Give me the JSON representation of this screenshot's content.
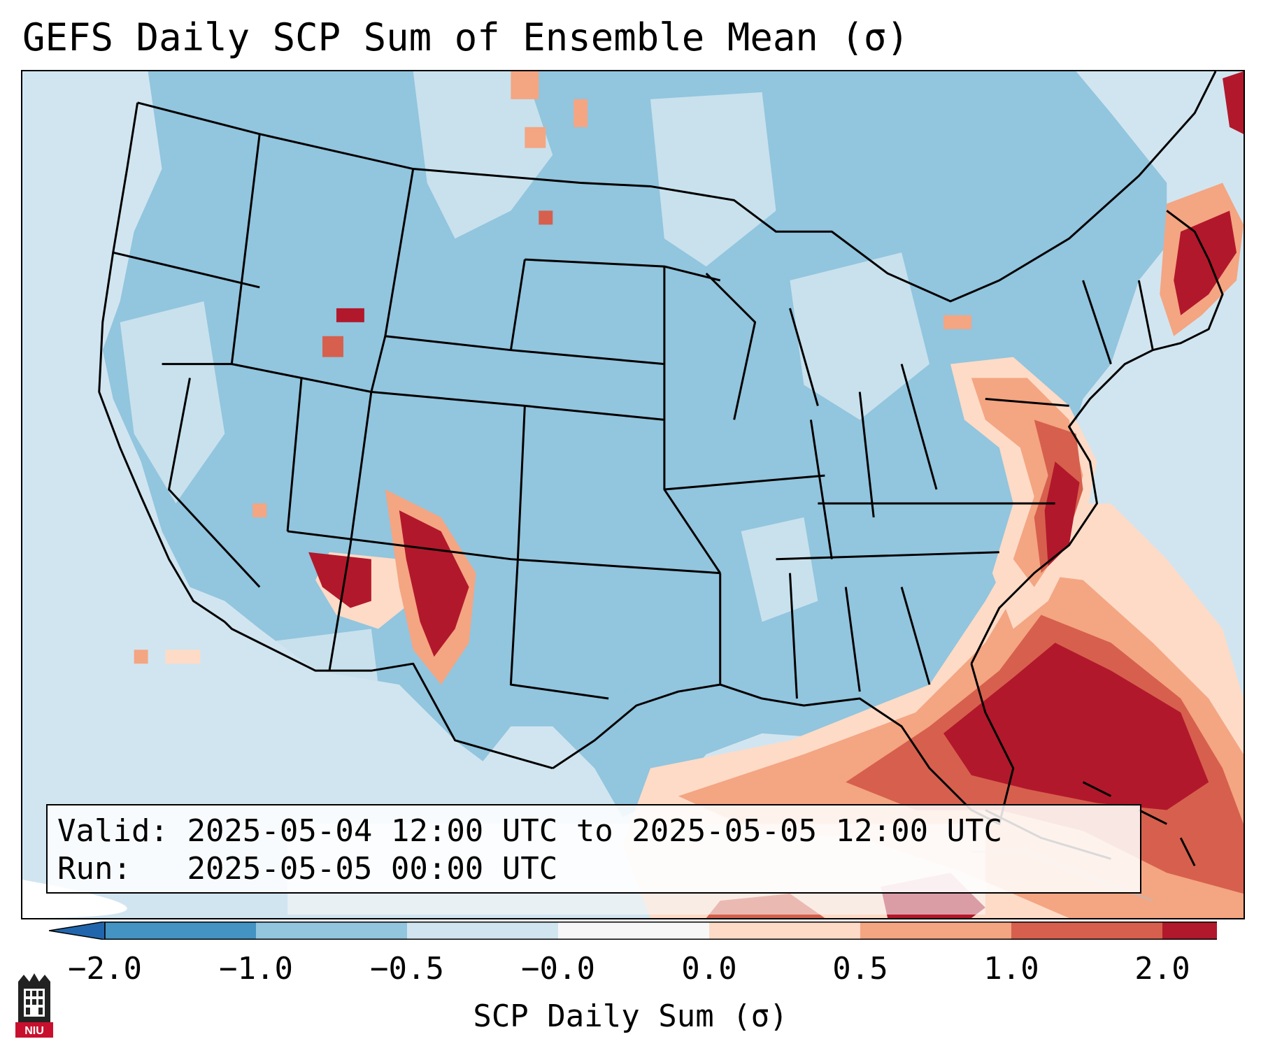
{
  "title": "GEFS Daily SCP Sum of Ensemble Mean (σ)",
  "info": {
    "valid_label": "Valid:",
    "valid_value": "2025-05-04 12:00 UTC to 2025-05-05 12:00 UTC",
    "run_label": "Run:",
    "run_value": "2025-05-05 00:00 UTC"
  },
  "colorbar": {
    "label": "SCP Daily Sum (σ)",
    "ticks": [
      "−2.0",
      "−1.0",
      "−0.5",
      "−0.0",
      "0.0",
      "0.5",
      "1.0",
      "2.0"
    ],
    "colors": [
      "#4393c3",
      "#92c5de",
      "#d1e5f0",
      "#f7f7f7",
      "#fddbc7",
      "#f4a582",
      "#d6604d",
      "#b2182b"
    ],
    "under_color": "#2166ac",
    "over_color": "#b2182b"
  },
  "logo": {
    "text": "NIU",
    "icon": "university-tower-icon"
  },
  "map": {
    "region": "Contiguous United States",
    "ocean_color": "#d1e5f0",
    "land_color": "#92c5de"
  }
}
